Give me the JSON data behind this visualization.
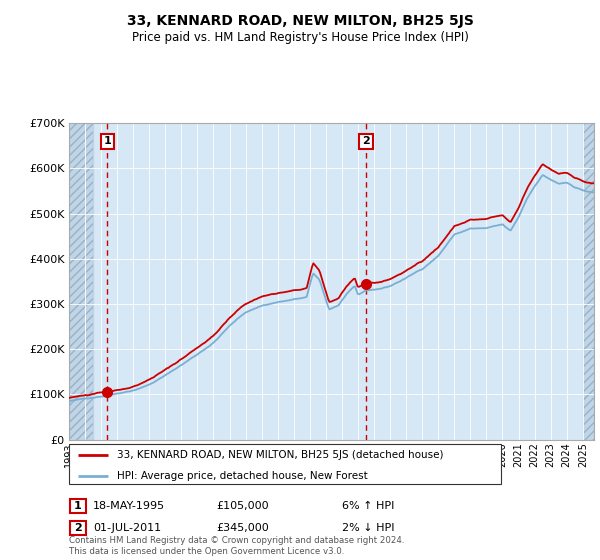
{
  "title": "33, KENNARD ROAD, NEW MILTON, BH25 5JS",
  "subtitle": "Price paid vs. HM Land Registry's House Price Index (HPI)",
  "hpi_label": "HPI: Average price, detached house, New Forest",
  "property_label": "33, KENNARD ROAD, NEW MILTON, BH25 5JS (detached house)",
  "red_color": "#cc0000",
  "blue_color": "#7aafd4",
  "bg_color": "#d6e8f5",
  "sale1_date": "18-MAY-1995",
  "sale1_price": 105000,
  "sale1_label": "6% ↑ HPI",
  "sale1_x": 1995.38,
  "sale2_date": "01-JUL-2011",
  "sale2_price": 345000,
  "sale2_label": "2% ↓ HPI",
  "sale2_x": 2011.5,
  "ylim": [
    0,
    700000
  ],
  "xlim_start": 1993.0,
  "xlim_end": 2025.7,
  "hatch_left_end": 1994.5,
  "hatch_right_start": 2025.0,
  "footer": "Contains HM Land Registry data © Crown copyright and database right 2024.\nThis data is licensed under the Open Government Licence v3.0."
}
